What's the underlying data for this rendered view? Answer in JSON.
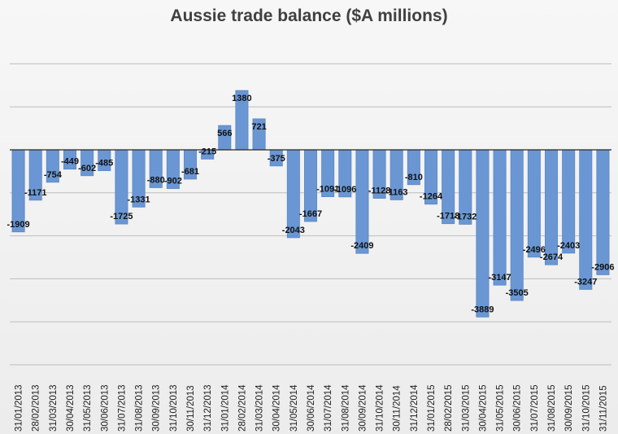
{
  "chart_data": {
    "type": "bar",
    "title": "Aussie trade balance ($A millions)",
    "xlabel": "",
    "ylabel": "",
    "ylim": [
      -5000,
      2500
    ],
    "grid": true,
    "legend": "none",
    "bar_color": "#6a97d4",
    "bar_edge_color": "#5a86c4",
    "categories": [
      "31/01/2013",
      "28/02/2013",
      "31/03/2013",
      "30/04/2013",
      "31/05/2013",
      "30/06/2013",
      "31/07/2013",
      "31/08/2013",
      "30/09/2013",
      "31/10/2013",
      "30/11/2013",
      "31/12/2013",
      "31/01/2014",
      "28/02/2014",
      "31/03/2014",
      "30/04/2014",
      "31/05/2014",
      "30/06/2014",
      "31/07/2014",
      "31/08/2014",
      "30/09/2014",
      "31/10/2014",
      "30/11/2014",
      "31/12/2014",
      "31/01/2015",
      "28/02/2015",
      "31/03/2015",
      "30/04/2015",
      "31/05/2015",
      "30/06/2015",
      "31/07/2015",
      "31/08/2015",
      "30/09/2015",
      "31/10/2015",
      "31/11/2015"
    ],
    "values": [
      -1909,
      -1171,
      -754,
      -449,
      -602,
      -485,
      -1725,
      -1331,
      -880,
      -902,
      -681,
      -215,
      566,
      1380,
      721,
      -375,
      -2043,
      -1667,
      -1091,
      -1096,
      -2409,
      -1128,
      -1163,
      -810,
      -1264,
      -1718,
      -1732,
      -3889,
      -3147,
      -3505,
      -2496,
      -2674,
      -2403,
      -3247,
      -2906
    ],
    "data_labels": [
      "-1909",
      "-1171",
      "-754",
      "-449",
      "-602",
      "-485",
      "-1725",
      "-1331",
      "-880",
      "-902",
      "-681",
      "-215",
      "566",
      "1380",
      "721",
      "-375",
      "-2043",
      "-1667",
      "-1091",
      "-1096",
      "-2409",
      "-1128",
      "-1163",
      "-810",
      "-1264",
      "-1718",
      "-1732",
      "-3889",
      "-3147",
      "-3505",
      "-2496",
      "-2674",
      "-2403",
      "-3247",
      "-2906"
    ]
  }
}
